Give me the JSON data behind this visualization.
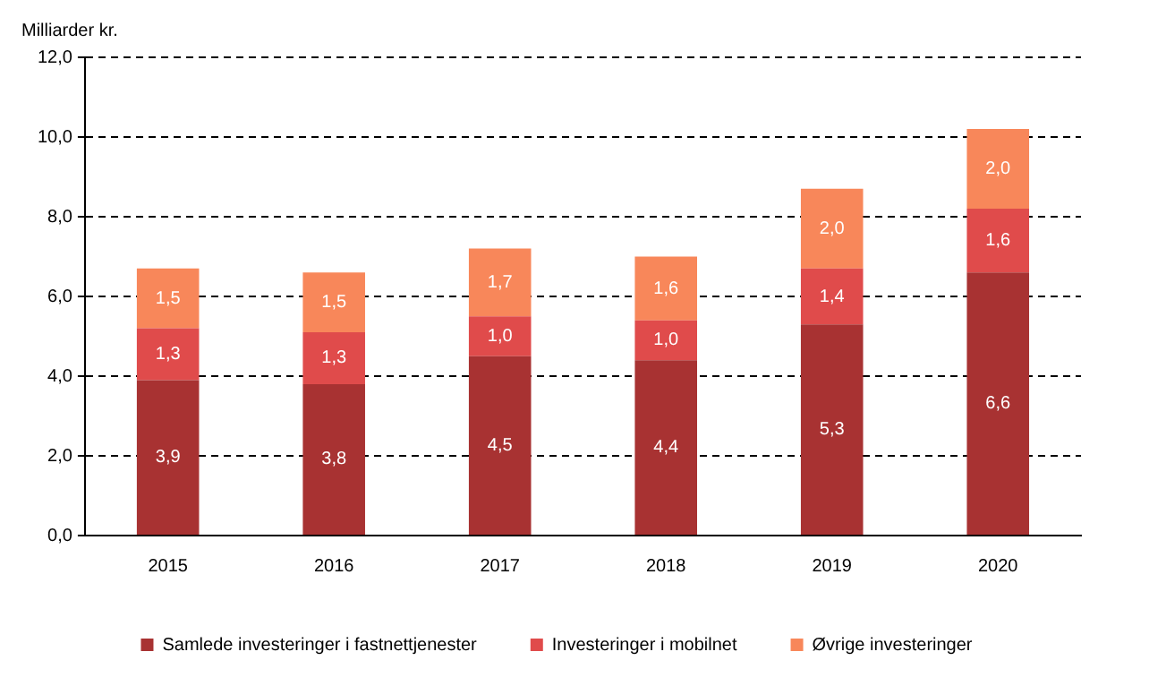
{
  "chart_data": {
    "type": "bar",
    "stacked": true,
    "ylabel": "Milliarder kr.",
    "categories": [
      "2015",
      "2016",
      "2017",
      "2018",
      "2019",
      "2020"
    ],
    "series": [
      {
        "name": "Samlede investeringer i fastnettjenester",
        "color": "#a83232",
        "values": [
          3.9,
          3.8,
          4.5,
          4.4,
          5.3,
          6.6
        ],
        "value_labels": [
          "3,9",
          "3,8",
          "4,5",
          "4,4",
          "5,3",
          "6,6"
        ]
      },
      {
        "name": "Investeringer i mobilnet",
        "color": "#e04b4b",
        "values": [
          1.3,
          1.3,
          1.0,
          1.0,
          1.4,
          1.6
        ],
        "value_labels": [
          "1,3",
          "1,3",
          "1,0",
          "1,0",
          "1,4",
          "1,6"
        ]
      },
      {
        "name": "Øvrige investeringer",
        "color": "#f8875a",
        "values": [
          1.5,
          1.5,
          1.7,
          1.6,
          2.0,
          2.0
        ],
        "value_labels": [
          "1,5",
          "1,5",
          "1,7",
          "1,6",
          "2,0",
          "2,0"
        ]
      }
    ],
    "ylim": [
      0,
      12
    ],
    "yticks": [
      {
        "value": 0,
        "label": "0,0"
      },
      {
        "value": 2,
        "label": "2,0"
      },
      {
        "value": 4,
        "label": "4,0"
      },
      {
        "value": 6,
        "label": "6,0"
      },
      {
        "value": 8,
        "label": "8,0"
      },
      {
        "value": 10,
        "label": "10,0"
      },
      {
        "value": 12,
        "label": "12,0"
      }
    ],
    "grid": "y",
    "legend": "bottom"
  }
}
